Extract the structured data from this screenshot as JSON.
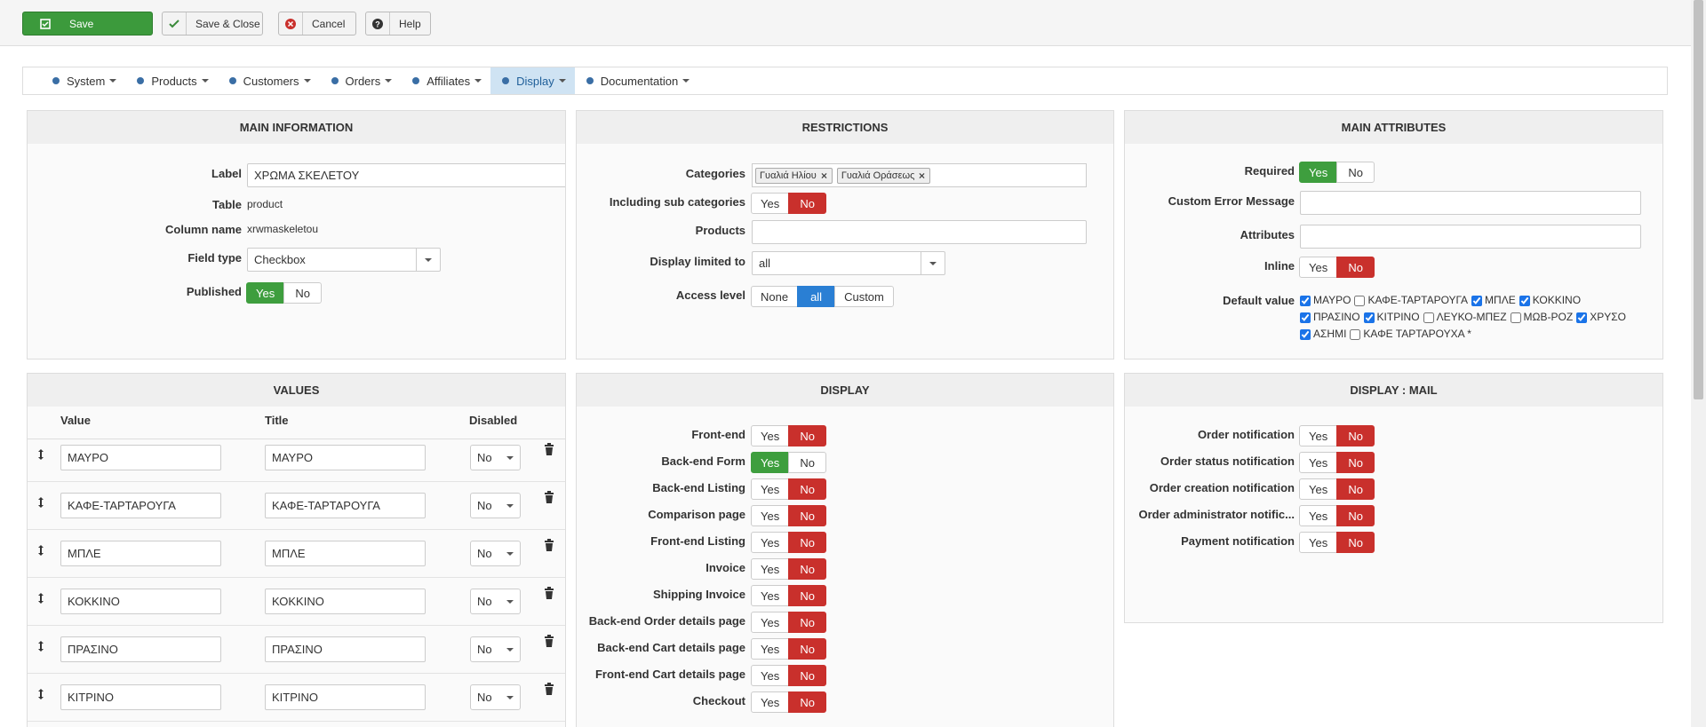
{
  "toolbar": [
    "Save",
    "Save & Close",
    "Cancel",
    "Help"
  ],
  "menu": {
    "items": [
      "System",
      "Products",
      "Customers",
      "Orders",
      "Affiliates",
      "Display",
      "Documentation"
    ],
    "active": 5
  },
  "panels": [
    {
      "title": "MAIN INFORMATION",
      "rows": [
        {
          "label": "Label",
          "kind": "input",
          "value": "ΧΡΩΜΑ ΣΚΕΛΕΤΟΥ"
        },
        {
          "label": "Table",
          "kind": "text",
          "value": "product"
        },
        {
          "label": "Column name",
          "kind": "text",
          "value": "xrwmaskeletou"
        },
        {
          "label": "Field type",
          "kind": "select",
          "value": "Checkbox"
        },
        {
          "label": "Published",
          "kind": "toggle",
          "options": [
            "Yes",
            "No"
          ],
          "selected": 0
        }
      ]
    },
    {
      "title": "RESTRICTIONS",
      "rows": [
        {
          "label": "Categories",
          "kind": "tags",
          "tags": [
            "Γυαλιά Ηλίου",
            "Γυαλιά Οράσεως"
          ]
        },
        {
          "label": "Including sub categories",
          "kind": "toggle",
          "options": [
            "Yes",
            "No"
          ],
          "selected": 1
        },
        {
          "label": "Products",
          "kind": "input"
        },
        {
          "label": "Display limited to",
          "kind": "select",
          "value": "all"
        },
        {
          "label": "Access level",
          "kind": "toggle",
          "options": [
            "None",
            "all",
            "Custom"
          ],
          "selected": 1
        }
      ]
    },
    {
      "title": "MAIN ATTRIBUTES",
      "rows": [
        {
          "label": "Required",
          "kind": "toggle",
          "options": [
            "Yes",
            "No"
          ],
          "selected": 0
        },
        {
          "label": "Custom Error Message",
          "kind": "input"
        },
        {
          "label": "Attributes",
          "kind": "input"
        },
        {
          "label": "Inline",
          "kind": "toggle",
          "options": [
            "Yes",
            "No"
          ],
          "selected": 1
        },
        {
          "label": "Default value",
          "kind": "checks",
          "checks": [
            {
              "text": "ΜΑΥΡΟ",
              "checked": true
            },
            {
              "text": "ΚΑΦΕ-ΤΑΡΤΑΡΟΥΓΑ",
              "checked": false
            },
            {
              "text": "ΜΠΛΕ",
              "checked": true
            },
            {
              "text": "ΚΟΚΚΙΝΟ",
              "checked": true
            },
            {
              "text": "ΠΡΑΣΙΝΟ",
              "checked": true
            },
            {
              "text": "ΚΙΤΡΙΝΟ",
              "checked": true
            },
            {
              "text": "ΛΕΥΚΟ-ΜΠΕΖ",
              "checked": false
            },
            {
              "text": "ΜΩΒ-ΡΟΖ",
              "checked": false
            },
            {
              "text": "ΧΡΥΣΟ",
              "checked": true
            },
            {
              "text": "ΑΣΗΜΙ",
              "checked": true
            },
            {
              "text": "ΚΑΦΕ ΤΑΡΤΑΡΟΥΧΑ *",
              "checked": false
            }
          ]
        }
      ]
    },
    {
      "title": "DISPLAY",
      "rows": [
        {
          "label": "Front-end",
          "kind": "toggle",
          "options": [
            "Yes",
            "No"
          ],
          "selected": 1
        },
        {
          "label": "Back-end Form",
          "kind": "toggle",
          "options": [
            "Yes",
            "No"
          ],
          "selected": 0
        },
        {
          "label": "Back-end Listing",
          "kind": "toggle",
          "options": [
            "Yes",
            "No"
          ],
          "selected": 1
        },
        {
          "label": "Comparison page",
          "kind": "toggle",
          "options": [
            "Yes",
            "No"
          ],
          "selected": 1
        },
        {
          "label": "Front-end Listing",
          "kind": "toggle",
          "options": [
            "Yes",
            "No"
          ],
          "selected": 1
        },
        {
          "label": "Invoice",
          "kind": "toggle",
          "options": [
            "Yes",
            "No"
          ],
          "selected": 1
        },
        {
          "label": "Shipping Invoice",
          "kind": "toggle",
          "options": [
            "Yes",
            "No"
          ],
          "selected": 1
        },
        {
          "label": "Back-end Order details page",
          "kind": "toggle",
          "options": [
            "Yes",
            "No"
          ],
          "selected": 1
        },
        {
          "label": "Back-end Cart details page",
          "kind": "toggle",
          "options": [
            "Yes",
            "No"
          ],
          "selected": 1
        },
        {
          "label": "Front-end Cart details page",
          "kind": "toggle",
          "options": [
            "Yes",
            "No"
          ],
          "selected": 1
        },
        {
          "label": "Checkout",
          "kind": "toggle",
          "options": [
            "Yes",
            "No"
          ],
          "selected": 1
        }
      ]
    },
    {
      "title": "DISPLAY : MAIL",
      "rows": [
        {
          "label": "Order notification",
          "kind": "toggle",
          "options": [
            "Yes",
            "No"
          ],
          "selected": 1
        },
        {
          "label": "Order status notification",
          "kind": "toggle",
          "options": [
            "Yes",
            "No"
          ],
          "selected": 1
        },
        {
          "label": "Order creation notification",
          "kind": "toggle",
          "options": [
            "Yes",
            "No"
          ],
          "selected": 1
        },
        {
          "label": "Order administrator notific...",
          "kind": "toggle",
          "options": [
            "Yes",
            "No"
          ],
          "selected": 1
        },
        {
          "label": "Payment notification",
          "kind": "toggle",
          "options": [
            "Yes",
            "No"
          ],
          "selected": 1
        }
      ]
    }
  ],
  "values": {
    "title": "VALUES",
    "columns": [
      "Value",
      "Title",
      "Disabled"
    ],
    "rows": [
      [
        "ΜΑΥΡΟ",
        "ΜΑΥΡΟ",
        "No"
      ],
      [
        "ΚΑΦΕ-ΤΑΡΤΑΡΟΥΓΑ",
        "ΚΑΦΕ-ΤΑΡΤΑΡΟΥΓΑ",
        "No"
      ],
      [
        "ΜΠΛΕ",
        "ΜΠΛΕ",
        "No"
      ],
      [
        "ΚΟΚΚΙΝΟ",
        "ΚΟΚΚΙΝΟ",
        "No"
      ],
      [
        "ΠΡΑΣΙΝΟ",
        "ΠΡΑΣΙΝΟ",
        "No"
      ],
      [
        "ΚΙΤΡΙΝΟ",
        "ΚΙΤΡΙΝΟ",
        "No"
      ]
    ]
  }
}
